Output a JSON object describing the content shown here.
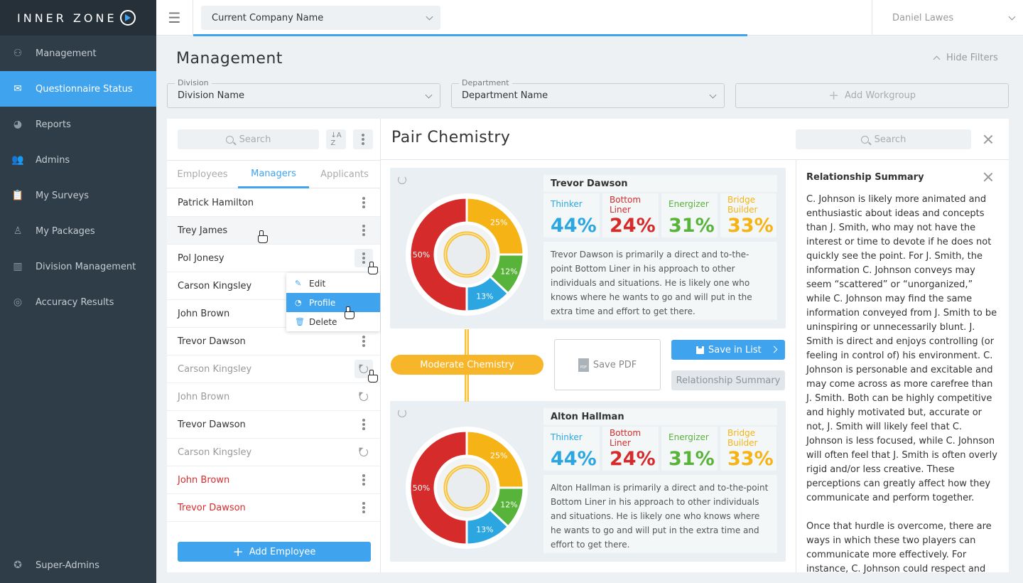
{
  "app": {
    "logo_text": "INNER ZONE"
  },
  "sidebar": {
    "items": [
      {
        "label": "Management",
        "icon": "org-chart-icon"
      },
      {
        "label": "Questionnaire Status",
        "icon": "envelope-icon"
      },
      {
        "label": "Reports",
        "icon": "pie-chart-icon"
      },
      {
        "label": "Admins",
        "icon": "users-icon"
      },
      {
        "label": "My Surveys",
        "icon": "clipboard-icon"
      },
      {
        "label": "My Packages",
        "icon": "person-package-icon"
      },
      {
        "label": "Division Management",
        "icon": "bar-chart-icon"
      },
      {
        "label": "Accuracy Results",
        "icon": "target-icon"
      }
    ],
    "bottom_item": {
      "label": "Super-Admins",
      "icon": "star-icon"
    },
    "active_index": 1
  },
  "topbar": {
    "company": "Current Company Name",
    "user": "Daniel Lawes"
  },
  "page": {
    "title": "Management",
    "hide_filters": "Hide Filters"
  },
  "filters": {
    "division": {
      "label": "Division",
      "value": "Division Name"
    },
    "department": {
      "label": "Department",
      "value": "Department Name"
    },
    "add_workgroup": "Add Workgroup"
  },
  "left_panel": {
    "search_placeholder": "Search",
    "tabs": [
      "Employees",
      "Managers",
      "Applicants"
    ],
    "active_tab": 1,
    "rows": [
      {
        "name": "Patrick Hamilton",
        "state": "normal",
        "action": "more"
      },
      {
        "name": "Trey James",
        "state": "hover",
        "action": "more"
      },
      {
        "name": "Pol Jonesy",
        "state": "normal",
        "action": "more-open"
      },
      {
        "name": "Carson Kingsley",
        "state": "normal",
        "action": "none"
      },
      {
        "name": "John Brown",
        "state": "normal",
        "action": "none"
      },
      {
        "name": "Trevor Dawson",
        "state": "normal",
        "action": "more"
      },
      {
        "name": "Carson Kingsley",
        "state": "muted",
        "action": "refresh-boxed"
      },
      {
        "name": "John Brown",
        "state": "muted",
        "action": "refresh"
      },
      {
        "name": "Trevor Dawson",
        "state": "normal",
        "action": "more"
      },
      {
        "name": "Carson Kingsley",
        "state": "muted",
        "action": "refresh"
      },
      {
        "name": "John Brown",
        "state": "red",
        "action": "more"
      },
      {
        "name": "Trevor Dawson",
        "state": "red",
        "action": "more"
      }
    ],
    "context_menu": [
      "Edit",
      "Profile",
      "Delete"
    ],
    "context_menu_selected": 1,
    "add_button": "Add Employee"
  },
  "pair": {
    "title": "Pair Chemistry",
    "search_placeholder": "Search",
    "chemistry_label": "Moderate Chemistry",
    "save_pdf": "Save PDF",
    "pdf_icon_text": "PDF",
    "save_in_list": "Save in List",
    "relationship_summary_btn": "Relationship Summary",
    "metric_labels": [
      "Thinker",
      "Bottom Liner",
      "Energizer",
      "Bridge Builder"
    ],
    "colors": {
      "thinker": "#2ba6e0",
      "bottom_liner": "#d62b2b",
      "energizer": "#58b33a",
      "bridge_builder": "#f5b315"
    },
    "people": [
      {
        "name": "Trevor Dawson",
        "values": [
          "44%",
          "24%",
          "31%",
          "33%"
        ],
        "description": "Trevor Dawson is primarily a direct and to-the-point Bottom Liner in his approach to other individuals and situations. He is likely one who knows where he wants to go and will put in the extra time and effort to get there.",
        "donut": [
          {
            "label": "25%",
            "value": 25
          },
          {
            "label": "12%",
            "value": 12
          },
          {
            "label": "13%",
            "value": 13
          },
          {
            "label": "50%",
            "value": 50
          }
        ]
      },
      {
        "name": "Alton Hallman",
        "values": [
          "44%",
          "24%",
          "31%",
          "33%"
        ],
        "description": "Alton Hallman is primarily a direct and to-the-point Bottom Liner in his approach to other individuals and situations. He is likely one who knows where he wants to go and will put in the extra time and effort to get there.",
        "donut": [
          {
            "label": "25%",
            "value": 25
          },
          {
            "label": "12%",
            "value": 12
          },
          {
            "label": "13%",
            "value": 13
          },
          {
            "label": "50%",
            "value": 50
          }
        ]
      }
    ]
  },
  "relationship": {
    "title": "Relationship Summary",
    "paragraphs": [
      "C. Johnson is likely more animated and enthusiastic about ideas and concepts than J. Smith, who may not have the interest or time to devote if he does not quickly see the point. For J. Smith, the information C. Johnson conveys may seem “scattered” or “unorganized,” while C. Johnson may find the same information conveyed from J. Smith to be uninspiring or unnecessarily blunt. J. Smith is direct and enjoys controlling (or feeling in control of) his environment. C. Johnson is personable and excitable and may come across as more carefree than J. Smith. Both can be highly competitive and highly motivated but, accurate or not, J. Smith will likely feel that C. Johnson is less focused, while C. Johnson will often feel that J. Smith is often overly rigid and/or less creative. These perceptions can greatly affect how they communicate and perform together.",
      "Once that hurdle is overcome, there are ways in which these two players can communicate more effectively. For instance, C. Johnson could respect and"
    ]
  }
}
